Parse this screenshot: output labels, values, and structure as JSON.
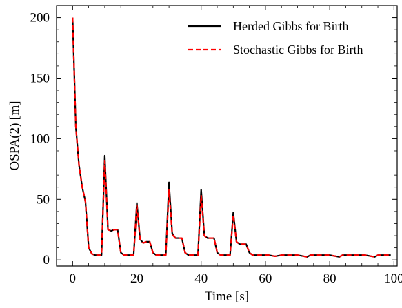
{
  "chart_data": {
    "type": "line",
    "xlabel": "Time [s]",
    "ylabel": "OSPA(2) [m]",
    "xlim": [
      -5,
      101
    ],
    "ylim": [
      -5,
      210
    ],
    "xticks": [
      0,
      20,
      40,
      60,
      80,
      100
    ],
    "yticks": [
      0,
      50,
      100,
      150,
      200
    ],
    "grid": false,
    "legend_position": "top-right",
    "x": [
      0,
      1,
      2,
      3,
      4,
      5,
      6,
      7,
      8,
      9,
      10,
      11,
      12,
      13,
      14,
      15,
      16,
      17,
      18,
      19,
      20,
      21,
      22,
      23,
      24,
      25,
      26,
      27,
      28,
      29,
      30,
      31,
      32,
      33,
      34,
      35,
      36,
      37,
      38,
      39,
      40,
      41,
      42,
      43,
      44,
      45,
      46,
      47,
      48,
      49,
      50,
      51,
      52,
      53,
      54,
      55,
      56,
      57,
      58,
      59,
      60,
      61,
      62,
      63,
      64,
      65,
      66,
      67,
      68,
      69,
      70,
      71,
      72,
      73,
      74,
      75,
      76,
      77,
      78,
      79,
      80,
      81,
      82,
      83,
      84,
      85,
      86,
      87,
      88,
      89,
      90,
      91,
      92,
      93,
      94,
      95,
      96,
      97,
      98,
      99
    ],
    "series": [
      {
        "name": "Herded Gibbs for Birth",
        "color": "#000000",
        "dash": "solid",
        "values": [
          200,
          110,
          78,
          60,
          48,
          10,
          5,
          4,
          4,
          4,
          86,
          25,
          24,
          25,
          25,
          6,
          4,
          4,
          4,
          4,
          47,
          17,
          14,
          15,
          15,
          6,
          4,
          4,
          4,
          4,
          64,
          22,
          18,
          18,
          18,
          6,
          4,
          4,
          4,
          4,
          58,
          20,
          18,
          18,
          18,
          6,
          4,
          4,
          4,
          4,
          39,
          15,
          13,
          13,
          13,
          6,
          4,
          4,
          4,
          4,
          4,
          4,
          3.5,
          3,
          3.5,
          4,
          4,
          4,
          4,
          4,
          4,
          3.5,
          3,
          2.5,
          4,
          4,
          4,
          4,
          4,
          4,
          4,
          3.5,
          3,
          2.5,
          4,
          4,
          4,
          4,
          4,
          4,
          4,
          4,
          3.5,
          3,
          2.5,
          4,
          4,
          4,
          4,
          4
        ]
      },
      {
        "name": "Stochastic Gibbs for Birth",
        "color": "#ff0000",
        "dash": "dashed",
        "values": [
          200,
          110,
          78,
          60,
          48,
          10,
          5,
          4,
          4,
          4,
          82,
          25,
          24,
          25,
          25,
          6,
          4,
          4,
          4,
          4,
          45,
          17,
          14,
          15,
          15,
          6,
          4,
          4,
          4,
          4,
          58,
          21,
          18,
          18,
          18,
          6,
          4,
          4,
          4,
          4,
          53,
          20,
          18,
          18,
          18,
          6,
          4,
          4,
          4,
          4,
          37,
          15,
          13,
          13,
          13,
          6,
          4,
          4,
          4,
          4,
          4,
          4,
          3.5,
          3,
          3.5,
          4,
          4,
          4,
          4,
          4,
          4,
          3.5,
          3,
          2.5,
          4,
          4,
          4,
          4,
          4,
          4,
          4,
          3.5,
          3,
          2.5,
          4,
          4,
          4,
          4,
          4,
          4,
          4,
          4,
          3.5,
          3,
          2.5,
          4,
          4,
          4,
          4,
          4
        ]
      }
    ]
  }
}
